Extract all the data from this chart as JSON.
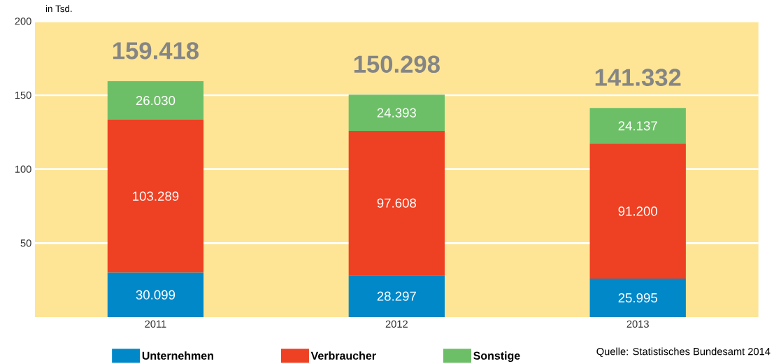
{
  "chart_data": {
    "type": "bar",
    "stacked": true,
    "ylabel": "in Tsd.",
    "categories": [
      "2011",
      "2012",
      "2013"
    ],
    "series": [
      {
        "name": "Unternehmen",
        "color": "#0088c9",
        "values": [
          30.099,
          28.297,
          25.995
        ],
        "value_labels": [
          "30.099",
          "28.297",
          "25.995"
        ]
      },
      {
        "name": "Verbraucher",
        "color": "#ee4023",
        "values": [
          103.289,
          97.608,
          91.2
        ],
        "value_labels": [
          "103.289",
          "97.608",
          "91.200"
        ]
      },
      {
        "name": "Sonstige",
        "color": "#6dbf67",
        "values": [
          26.03,
          24.393,
          24.137
        ],
        "value_labels": [
          "26.030",
          "24.393",
          "24.137"
        ]
      }
    ],
    "totals": [
      "159.418",
      "150.298",
      "141.332"
    ],
    "ylim": [
      0,
      200
    ],
    "yticks": [
      50,
      100,
      150,
      200
    ],
    "grid": "y",
    "legend": "bottom",
    "annotations": [
      "Quelle: Statistisches Bundesamt 2014"
    ]
  }
}
